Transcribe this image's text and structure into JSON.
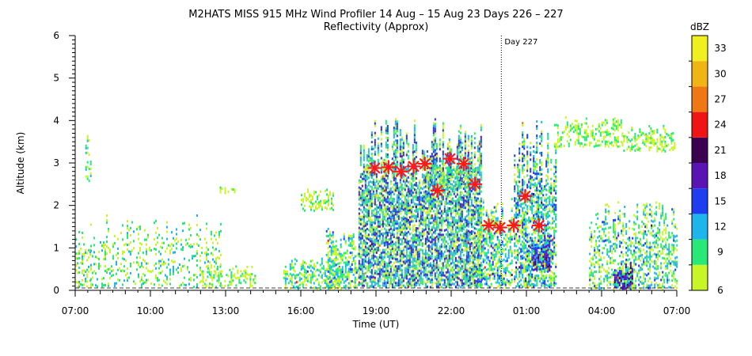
{
  "chart_data": {
    "type": "heatmap",
    "title": "M2HATS MISS 915 MHz Wind Profiler  14 Aug – 15 Aug 23 Days 226 – 227",
    "subtitle": "Reflectivity (Approx)",
    "xlabel": "Time (UT)",
    "ylabel": "Altitude (km)",
    "x_range_hours": [
      7,
      31
    ],
    "ylim": [
      0,
      6
    ],
    "x_ticks": [
      {
        "label": "07:00",
        "h": 7
      },
      {
        "label": "10:00",
        "h": 10
      },
      {
        "label": "13:00",
        "h": 13
      },
      {
        "label": "16:00",
        "h": 16
      },
      {
        "label": "19:00",
        "h": 19
      },
      {
        "label": "22:00",
        "h": 22
      },
      {
        "label": "01:00",
        "h": 25
      },
      {
        "label": "04:00",
        "h": 28
      },
      {
        "label": "07:00",
        "h": 31
      }
    ],
    "y_ticks": [
      0,
      1,
      2,
      3,
      4,
      5,
      6
    ],
    "day_marker": {
      "label": "Day 227",
      "h": 24
    },
    "colorbar": {
      "title": "dBZ",
      "ticks": [
        6,
        9,
        12,
        15,
        18,
        21,
        24,
        27,
        30,
        33
      ],
      "colors": [
        "#c8f526",
        "#28e878",
        "#1eb4ec",
        "#1e3cf0",
        "#5a14b4",
        "#3c0050",
        "#f01414",
        "#f07814",
        "#f0b414",
        "#f0f01e"
      ]
    },
    "markers": [
      {
        "h": 18.95,
        "alt": 2.88
      },
      {
        "h": 19.5,
        "alt": 2.9
      },
      {
        "h": 20.0,
        "alt": 2.8
      },
      {
        "h": 20.5,
        "alt": 2.92
      },
      {
        "h": 20.95,
        "alt": 2.98
      },
      {
        "h": 21.45,
        "alt": 2.35
      },
      {
        "h": 21.95,
        "alt": 3.1
      },
      {
        "h": 22.5,
        "alt": 2.98
      },
      {
        "h": 22.95,
        "alt": 2.5
      },
      {
        "h": 23.5,
        "alt": 1.53
      },
      {
        "h": 23.95,
        "alt": 1.48
      },
      {
        "h": 24.5,
        "alt": 1.53
      },
      {
        "h": 24.95,
        "alt": 2.22
      },
      {
        "h": 25.5,
        "alt": 1.53
      }
    ],
    "echo_regions": [
      {
        "h0": 7.0,
        "h1": 7.6,
        "a0": 0.1,
        "a1": 1.7,
        "density": 0.35,
        "intensity": 0.3
      },
      {
        "h0": 7.4,
        "h1": 7.6,
        "a0": 2.6,
        "a1": 4.1,
        "density": 0.3,
        "intensity": 0.35
      },
      {
        "h0": 7.6,
        "h1": 12.8,
        "a0": 0.1,
        "a1": 1.8,
        "density": 0.22,
        "intensity": 0.3
      },
      {
        "h0": 12.0,
        "h1": 14.2,
        "a0": 0.1,
        "a1": 0.6,
        "density": 0.35,
        "intensity": 0.2
      },
      {
        "h0": 12.7,
        "h1": 13.5,
        "a0": 2.3,
        "a1": 2.45,
        "density": 0.5,
        "intensity": 0.1
      },
      {
        "h0": 15.3,
        "h1": 17.8,
        "a0": 0.05,
        "a1": 0.8,
        "density": 0.45,
        "intensity": 0.4
      },
      {
        "h0": 16.0,
        "h1": 17.3,
        "a0": 1.9,
        "a1": 2.4,
        "density": 0.45,
        "intensity": 0.2
      },
      {
        "h0": 17.0,
        "h1": 18.3,
        "a0": 0.05,
        "a1": 1.5,
        "density": 0.5,
        "intensity": 0.45
      },
      {
        "h0": 18.3,
        "h1": 23.2,
        "a0": 0.1,
        "a1": 4.1,
        "density": 0.72,
        "intensity": 0.65
      },
      {
        "h0": 21.0,
        "h1": 23.0,
        "a0": 2.4,
        "a1": 3.2,
        "density": 0.6,
        "intensity": 0.5
      },
      {
        "h0": 23.0,
        "h1": 24.4,
        "a0": 0.1,
        "a1": 2.2,
        "density": 0.55,
        "intensity": 0.5
      },
      {
        "h0": 24.5,
        "h1": 26.2,
        "a0": 0.1,
        "a1": 4.1,
        "density": 0.6,
        "intensity": 0.6
      },
      {
        "h0": 25.2,
        "h1": 25.9,
        "a0": 0.5,
        "a1": 1.3,
        "density": 0.85,
        "intensity": 0.85
      },
      {
        "h0": 26.1,
        "h1": 28.8,
        "a0": 3.4,
        "a1": 4.1,
        "density": 0.4,
        "intensity": 0.2
      },
      {
        "h0": 28.8,
        "h1": 30.9,
        "a0": 3.3,
        "a1": 3.9,
        "density": 0.45,
        "intensity": 0.2
      },
      {
        "h0": 27.5,
        "h1": 31.0,
        "a0": 0.05,
        "a1": 2.2,
        "density": 0.4,
        "intensity": 0.45
      },
      {
        "h0": 28.5,
        "h1": 29.2,
        "a0": 0.05,
        "a1": 0.7,
        "density": 0.9,
        "intensity": 0.95
      }
    ]
  }
}
